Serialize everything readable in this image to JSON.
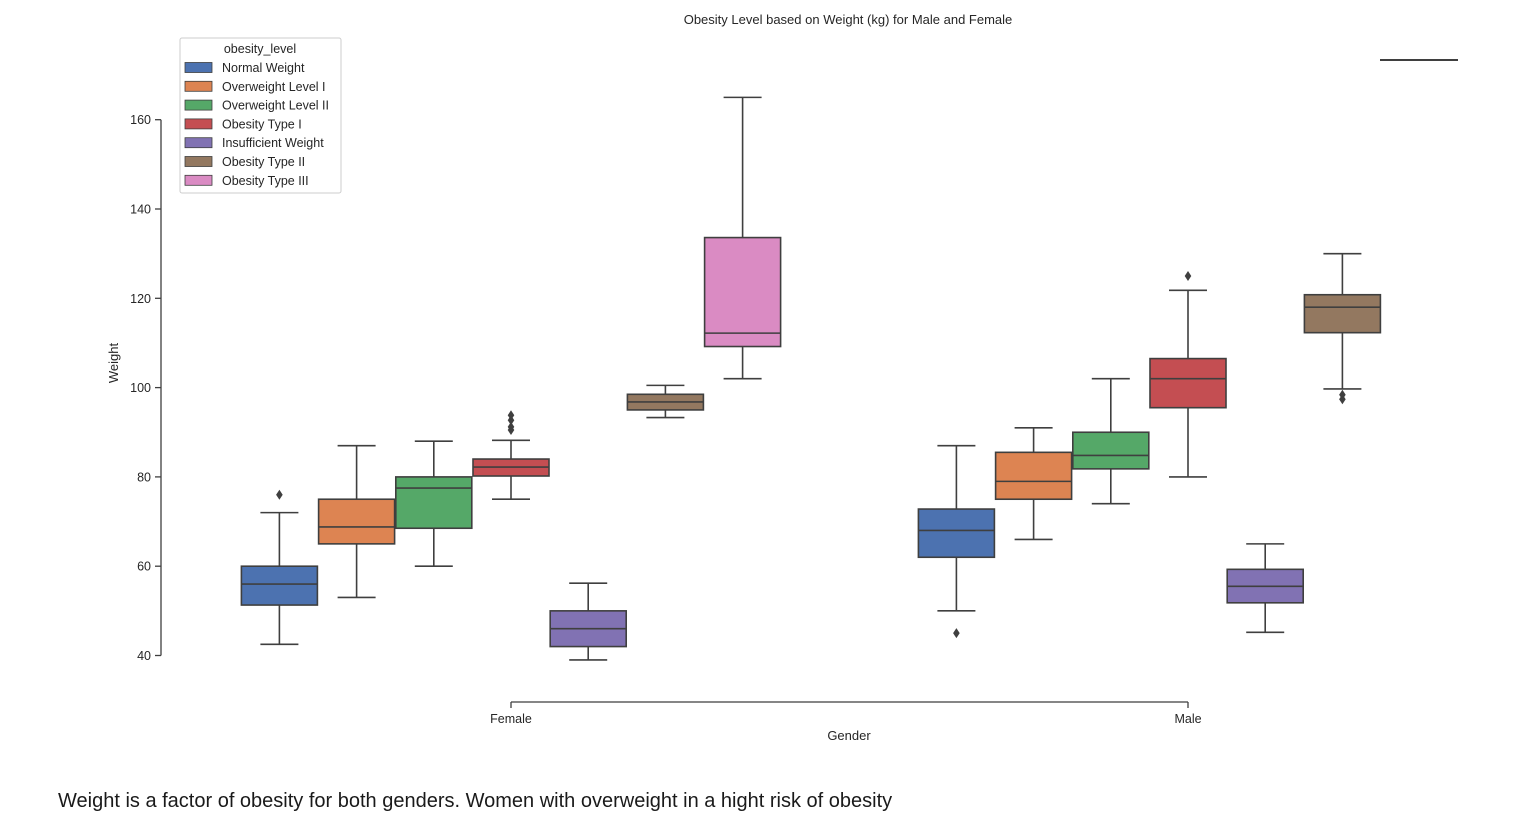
{
  "caption": "Weight is a factor of obesity for both genders. Women with overweight in a hight risk of obesity",
  "chart_data": {
    "type": "box",
    "title": "Obesity Level based on Weight (kg) for Male and Female",
    "xlabel": "Gender",
    "ylabel": "Weight",
    "categories": [
      "Female",
      "Male"
    ],
    "ylim": [
      37,
      170
    ],
    "yticks": [
      40,
      60,
      80,
      100,
      120,
      140,
      160
    ],
    "grid": false,
    "legend": {
      "title": "obesity_level",
      "position": "top-left"
    },
    "series": [
      {
        "name": "Normal Weight",
        "color": "#4c72b0",
        "stats": [
          {
            "whisker_low": 42.5,
            "q1": 51.3,
            "median": 56,
            "q3": 60,
            "whisker_high": 72,
            "outliers": [
              76
            ]
          },
          {
            "whisker_low": 50,
            "q1": 62,
            "median": 68,
            "q3": 72.8,
            "whisker_high": 87,
            "outliers": [
              45
            ]
          }
        ]
      },
      {
        "name": "Overweight Level I",
        "color": "#dd8452",
        "stats": [
          {
            "whisker_low": 53,
            "q1": 65,
            "median": 68.8,
            "q3": 75,
            "whisker_high": 87,
            "outliers": []
          },
          {
            "whisker_low": 66,
            "q1": 75,
            "median": 79,
            "q3": 85.5,
            "whisker_high": 91,
            "outliers": []
          }
        ]
      },
      {
        "name": "Overweight Level II",
        "color": "#55a868",
        "stats": [
          {
            "whisker_low": 60,
            "q1": 68.5,
            "median": 77.5,
            "q3": 80,
            "whisker_high": 88,
            "outliers": []
          },
          {
            "whisker_low": 74,
            "q1": 81.8,
            "median": 84.8,
            "q3": 90,
            "whisker_high": 102,
            "outliers": []
          }
        ]
      },
      {
        "name": "Obesity Type I",
        "color": "#c44e52",
        "stats": [
          {
            "whisker_low": 75,
            "q1": 80.2,
            "median": 82.2,
            "q3": 84,
            "whisker_high": 88.2,
            "outliers": [
              90.5,
              91.2,
              92.7,
              93.8
            ]
          },
          {
            "whisker_low": 80,
            "q1": 95.5,
            "median": 102,
            "q3": 106.5,
            "whisker_high": 121.8,
            "outliers": [
              125
            ]
          }
        ]
      },
      {
        "name": "Insufficient Weight",
        "color": "#8172b3",
        "stats": [
          {
            "whisker_low": 39,
            "q1": 42,
            "median": 46,
            "q3": 50,
            "whisker_high": 56.2,
            "outliers": []
          },
          {
            "whisker_low": 45.2,
            "q1": 51.8,
            "median": 55.5,
            "q3": 59.3,
            "whisker_high": 65,
            "outliers": []
          }
        ]
      },
      {
        "name": "Obesity Type II",
        "color": "#937860",
        "stats": [
          {
            "whisker_low": 93.3,
            "q1": 95,
            "median": 96.8,
            "q3": 98.5,
            "whisker_high": 100.5,
            "outliers": []
          },
          {
            "whisker_low": 99.7,
            "q1": 112.3,
            "median": 118,
            "q3": 120.8,
            "whisker_high": 130,
            "outliers": [
              97.4,
              98.4
            ]
          }
        ]
      },
      {
        "name": "Obesity Type III",
        "color": "#da8bc3",
        "stats": [
          {
            "whisker_low": 102,
            "q1": 109.2,
            "median": 112.2,
            "q3": 133.6,
            "whisker_high": 165,
            "outliers": []
          },
          null
        ]
      }
    ]
  }
}
